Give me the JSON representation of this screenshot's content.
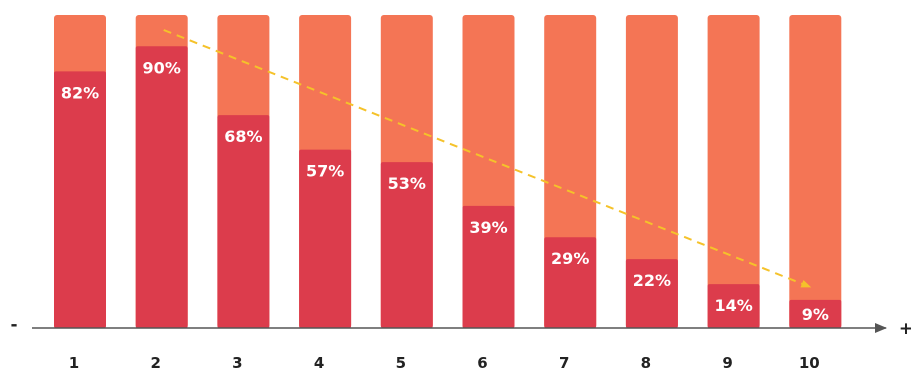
{
  "chart_data": {
    "type": "bar",
    "stacked": true,
    "categories": [
      "1",
      "2",
      "3",
      "4",
      "5",
      "6",
      "7",
      "8",
      "9",
      "10"
    ],
    "series": [
      {
        "values": [
          82,
          90,
          68,
          57,
          53,
          39,
          29,
          22,
          14,
          9
        ]
      },
      {
        "values": [
          18,
          10,
          32,
          43,
          47,
          61,
          71,
          78,
          86,
          91
        ]
      }
    ],
    "data_labels": [
      "82%",
      "90%",
      "68%",
      "57%",
      "53%",
      "39%",
      "29%",
      "22%",
      "14%",
      "9%"
    ],
    "ylim": [
      0,
      100
    ],
    "grid": false,
    "legend": "none",
    "axis_start_label": "-",
    "axis_end_label": "+",
    "trend_arrow": {
      "from_category": "2",
      "to_category": "10",
      "style": "dashed"
    },
    "colors": {
      "primary": "#dc3c4c",
      "secondary": "#f47555",
      "trend": "#f5c22a",
      "axis": "#555555"
    }
  }
}
